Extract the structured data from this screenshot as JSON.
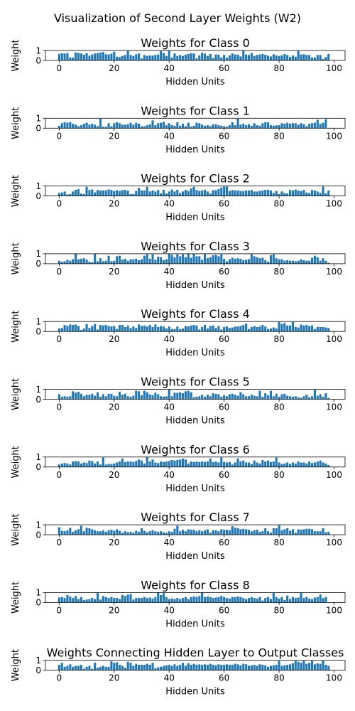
{
  "figure": {
    "title": "Visualization of Second Layer Weights (W2)"
  },
  "style": {
    "bar_color": "#1f77b4",
    "axis_color": "#000000"
  },
  "chart_data": [
    {
      "type": "bar",
      "title": "Weights for Class 0",
      "xlabel": "Hidden Units",
      "ylabel": "Weight",
      "x": "0..99",
      "ylim": [
        0,
        1
      ],
      "xlim": [
        -5,
        104
      ],
      "xticks": [
        0,
        20,
        40,
        60,
        80,
        100
      ],
      "yticks": [
        0,
        1
      ],
      "values": [
        0.65,
        0.72,
        0.7,
        0.75,
        0.3,
        0.28,
        0.8,
        0.75,
        0.7,
        0.58,
        0.73,
        0.48,
        0.6,
        0.7,
        0.75,
        0.8,
        0.85,
        0.62,
        0.6,
        0.68,
        0.88,
        0.38,
        0.35,
        0.45,
        0.55,
        0.95,
        0.55,
        0.45,
        0.62,
        0.7,
        0.2,
        0.55,
        0.45,
        0.5,
        0.48,
        0.55,
        0.6,
        0.95,
        0.75,
        0.45,
        0.98,
        0.3,
        0.7,
        0.45,
        0.55,
        0.45,
        0.58,
        0.65,
        0.72,
        0.7,
        0.2,
        0.5,
        0.78,
        0.68,
        0.45,
        0.65,
        0.25,
        0.6,
        0.58,
        0.3,
        0.55,
        0.28,
        0.5,
        0.7,
        0.6,
        0.58,
        0.4,
        0.98,
        0.6,
        0.55,
        0.75,
        0.45,
        0.55,
        0.6,
        0.65,
        0.58,
        0.48,
        0.4,
        0.62,
        0.5,
        0.45,
        0.5,
        0.65,
        0.55,
        0.35,
        0.5,
        0.38,
        0.95,
        0.6,
        0.62,
        0.55,
        0.55,
        0.3,
        0.3,
        0.55,
        0.55,
        0.15,
        0.35,
        0.65,
        0.0
      ]
    },
    {
      "type": "bar",
      "title": "Weights for Class 1",
      "xlabel": "Hidden Units",
      "ylabel": "Weight",
      "x": "0..99",
      "ylim": [
        0,
        1
      ],
      "xlim": [
        -5,
        104
      ],
      "xticks": [
        0,
        20,
        40,
        60,
        80,
        100
      ],
      "yticks": [
        0,
        1
      ],
      "values": [
        0.25,
        0.5,
        0.6,
        0.55,
        0.62,
        0.45,
        0.35,
        0.2,
        0.3,
        0.45,
        0.55,
        0.35,
        0.45,
        0.35,
        0.2,
        0.95,
        0.15,
        0.15,
        0.5,
        0.2,
        0.5,
        0.6,
        0.5,
        0.35,
        0.35,
        0.4,
        0.55,
        0.35,
        0.55,
        0.45,
        0.2,
        0.2,
        0.3,
        0.38,
        0.78,
        0.3,
        0.5,
        0.55,
        0.65,
        0.3,
        0.5,
        0.3,
        0.25,
        0.6,
        0.25,
        0.45,
        0.2,
        0.55,
        0.15,
        0.25,
        0.55,
        0.5,
        0.35,
        0.25,
        0.3,
        0.22,
        0.4,
        0.4,
        0.3,
        0.25,
        0.2,
        0.15,
        0.3,
        0.6,
        0.3,
        0.95,
        0.35,
        0.45,
        0.3,
        0.4,
        0.25,
        0.5,
        0.3,
        0.25,
        0.5,
        0.6,
        0.6,
        0.3,
        0.25,
        0.3,
        0.3,
        0.5,
        0.45,
        0.55,
        0.45,
        0.5,
        0.5,
        0.35,
        0.5,
        0.4,
        0.2,
        0.45,
        0.5,
        0.55,
        0.85,
        0.45,
        0.55,
        0.9,
        0.0,
        0.0
      ]
    },
    {
      "type": "bar",
      "title": "Weights for Class 2",
      "xlabel": "Hidden Units",
      "ylabel": "Weight",
      "x": "0..99",
      "ylim": [
        0,
        1
      ],
      "xlim": [
        -5,
        104
      ],
      "xticks": [
        0,
        20,
        40,
        60,
        80,
        100
      ],
      "yticks": [
        0,
        1
      ],
      "values": [
        0.3,
        0.35,
        0.45,
        0.15,
        0.2,
        0.45,
        0.62,
        0.68,
        0.25,
        0.2,
        0.92,
        0.6,
        0.65,
        0.35,
        0.6,
        0.55,
        0.55,
        0.55,
        0.65,
        0.6,
        0.5,
        0.58,
        0.5,
        0.6,
        0.6,
        0.55,
        0.2,
        0.2,
        0.5,
        0.8,
        0.55,
        0.55,
        0.92,
        0.45,
        0.55,
        0.45,
        0.6,
        0.25,
        0.62,
        0.25,
        0.45,
        0.65,
        0.45,
        0.62,
        0.3,
        0.45,
        0.62,
        0.5,
        0.75,
        0.92,
        0.6,
        0.5,
        0.55,
        0.62,
        0.45,
        0.25,
        0.58,
        0.58,
        0.68,
        0.85,
        0.95,
        0.95,
        0.5,
        0.6,
        0.55,
        0.55,
        0.5,
        0.5,
        0.55,
        0.55,
        0.6,
        0.45,
        0.45,
        0.5,
        0.55,
        0.62,
        0.62,
        0.55,
        0.3,
        0.5,
        0.2,
        0.45,
        0.3,
        0.25,
        0.6,
        0.55,
        0.65,
        0.55,
        0.5,
        0.6,
        0.35,
        0.3,
        0.6,
        0.55,
        0.45,
        0.3,
        0.95,
        0.25,
        0.55,
        0.0
      ]
    },
    {
      "type": "bar",
      "title": "Weights for Class 3",
      "xlabel": "Hidden Units",
      "ylabel": "Weight",
      "x": "0..99",
      "ylim": [
        0,
        1
      ],
      "xlim": [
        -5,
        104
      ],
      "xticks": [
        0,
        20,
        40,
        60,
        80,
        100
      ],
      "yticks": [
        0,
        1
      ],
      "values": [
        0.3,
        0.2,
        0.25,
        0.4,
        0.3,
        0.45,
        1.0,
        0.45,
        0.5,
        0.55,
        0.4,
        0.2,
        0.15,
        1.0,
        0.25,
        0.55,
        0.25,
        0.3,
        0.8,
        0.25,
        0.3,
        0.75,
        0.8,
        0.4,
        0.5,
        0.3,
        0.45,
        0.45,
        0.5,
        0.35,
        0.45,
        0.8,
        0.95,
        0.5,
        0.95,
        0.4,
        0.7,
        0.65,
        0.35,
        0.45,
        1.0,
        0.9,
        0.65,
        0.95,
        0.75,
        0.95,
        0.65,
        1.0,
        0.6,
        1.0,
        0.75,
        0.75,
        0.4,
        0.95,
        0.55,
        0.65,
        0.85,
        0.9,
        0.75,
        0.95,
        0.5,
        0.25,
        0.45,
        0.6,
        0.5,
        0.55,
        0.5,
        0.35,
        0.4,
        0.45,
        0.95,
        0.75,
        0.65,
        0.55,
        0.6,
        0.35,
        0.2,
        0.85,
        0.95,
        0.55,
        0.45,
        0.45,
        0.3,
        0.35,
        0.3,
        0.3,
        0.25,
        0.3,
        0.45,
        0.35,
        0.3,
        0.3,
        0.6,
        0.8,
        0.65,
        0.3,
        0.55,
        0.3,
        0.1,
        0.0
      ]
    },
    {
      "type": "bar",
      "title": "Weights for Class 4",
      "xlabel": "Hidden Units",
      "ylabel": "Weight",
      "x": "0..99",
      "ylim": [
        0,
        1
      ],
      "xlim": [
        -5,
        104
      ],
      "xticks": [
        0,
        20,
        40,
        60,
        80,
        100
      ],
      "yticks": [
        0,
        1
      ],
      "values": [
        0.3,
        0.35,
        0.65,
        0.55,
        0.7,
        0.65,
        0.7,
        0.55,
        0.15,
        0.3,
        0.75,
        0.35,
        0.55,
        0.75,
        0.2,
        0.65,
        0.6,
        0.65,
        0.55,
        0.5,
        0.55,
        0.25,
        0.65,
        0.65,
        0.45,
        0.6,
        0.35,
        0.5,
        0.35,
        0.7,
        0.55,
        0.6,
        0.5,
        0.65,
        0.45,
        0.7,
        0.45,
        0.55,
        0.5,
        0.3,
        0.5,
        0.25,
        0.25,
        0.5,
        0.25,
        0.3,
        0.55,
        0.5,
        0.6,
        0.65,
        0.6,
        0.2,
        0.45,
        0.65,
        0.3,
        0.55,
        0.6,
        0.35,
        0.55,
        0.2,
        0.45,
        0.5,
        0.35,
        0.4,
        0.5,
        0.5,
        0.55,
        0.65,
        0.8,
        0.25,
        0.45,
        0.55,
        0.45,
        0.5,
        0.65,
        0.5,
        0.25,
        0.3,
        0.4,
        0.3,
        0.95,
        0.75,
        0.85,
        0.6,
        0.6,
        0.95,
        0.45,
        0.4,
        0.7,
        0.6,
        0.65,
        0.55,
        0.6,
        0.25,
        0.45,
        0.45,
        0.45,
        0.4,
        0.35,
        0.0
      ]
    },
    {
      "type": "bar",
      "title": "Weights for Class 5",
      "xlabel": "Hidden Units",
      "ylabel": "Weight",
      "x": "0..99",
      "ylim": [
        0,
        1
      ],
      "xlim": [
        -5,
        104
      ],
      "xticks": [
        0,
        20,
        40,
        60,
        80,
        100
      ],
      "yticks": [
        0,
        1
      ],
      "values": [
        0.5,
        0.25,
        0.3,
        0.25,
        0.3,
        0.8,
        0.65,
        0.75,
        0.55,
        0.3,
        0.45,
        0.45,
        0.55,
        0.35,
        0.7,
        0.25,
        0.5,
        0.3,
        0.55,
        0.55,
        0.35,
        0.3,
        0.75,
        0.45,
        0.55,
        0.3,
        0.25,
        0.35,
        0.85,
        0.8,
        0.4,
        0.85,
        0.7,
        0.5,
        0.4,
        0.65,
        0.5,
        0.3,
        0.25,
        0.3,
        1.0,
        0.3,
        0.65,
        0.65,
        0.7,
        0.6,
        0.8,
        0.85,
        0.7,
        0.2,
        0.25,
        0.3,
        0.45,
        0.25,
        0.45,
        0.3,
        0.6,
        0.55,
        0.5,
        0.25,
        0.4,
        0.3,
        0.5,
        0.55,
        0.45,
        0.35,
        0.7,
        0.5,
        0.3,
        0.3,
        0.45,
        0.35,
        0.3,
        0.85,
        0.25,
        0.6,
        0.4,
        0.85,
        0.3,
        0.55,
        0.25,
        0.5,
        0.55,
        0.35,
        0.3,
        0.25,
        0.3,
        0.2,
        0.15,
        0.3,
        0.45,
        0.2,
        0.3,
        0.95,
        0.35,
        0.5,
        0.25,
        0.6,
        0.15,
        0.0
      ]
    },
    {
      "type": "bar",
      "title": "Weights for Class 6",
      "xlabel": "Hidden Units",
      "ylabel": "Weight",
      "x": "0..99",
      "ylim": [
        0,
        1
      ],
      "xlim": [
        -5,
        104
      ],
      "xticks": [
        0,
        20,
        40,
        60,
        80,
        100
      ],
      "yticks": [
        0,
        1
      ],
      "values": [
        0.25,
        0.35,
        0.4,
        0.35,
        0.25,
        0.55,
        0.6,
        0.55,
        0.35,
        0.45,
        0.4,
        0.65,
        0.6,
        0.35,
        0.55,
        0.25,
        0.95,
        0.25,
        0.3,
        0.3,
        0.35,
        0.45,
        0.55,
        0.85,
        0.5,
        0.55,
        0.55,
        0.5,
        0.6,
        0.75,
        0.65,
        0.35,
        1.0,
        0.55,
        0.75,
        0.45,
        0.4,
        0.55,
        0.5,
        0.55,
        0.6,
        0.7,
        0.65,
        0.7,
        0.75,
        0.85,
        0.75,
        0.35,
        0.55,
        0.5,
        0.55,
        0.5,
        0.55,
        0.5,
        0.55,
        0.85,
        0.5,
        0.55,
        0.45,
        0.95,
        0.5,
        0.45,
        0.5,
        0.25,
        0.45,
        0.85,
        0.55,
        0.65,
        0.45,
        0.45,
        0.3,
        0.65,
        0.45,
        0.35,
        0.7,
        0.55,
        0.65,
        0.5,
        0.55,
        0.95,
        0.45,
        0.3,
        0.35,
        0.45,
        0.3,
        0.45,
        0.35,
        0.55,
        0.45,
        0.45,
        0.35,
        0.55,
        0.4,
        0.45,
        0.55,
        0.65,
        0.45,
        0.35,
        0.2,
        0.0
      ]
    },
    {
      "type": "bar",
      "title": "Weights for Class 7",
      "xlabel": "Hidden Units",
      "ylabel": "Weight",
      "x": "0..99",
      "ylim": [
        0,
        1
      ],
      "xlim": [
        -5,
        104
      ],
      "xticks": [
        0,
        20,
        40,
        60,
        80,
        100
      ],
      "yticks": [
        0,
        1
      ],
      "values": [
        0.75,
        0.4,
        0.35,
        0.45,
        0.7,
        0.3,
        0.45,
        0.55,
        0.9,
        0.35,
        0.7,
        0.65,
        0.55,
        0.45,
        0.35,
        0.35,
        0.45,
        0.3,
        0.45,
        0.5,
        0.4,
        0.55,
        0.4,
        0.2,
        0.35,
        0.25,
        0.3,
        0.2,
        0.4,
        0.3,
        0.65,
        0.4,
        0.25,
        0.35,
        0.45,
        0.35,
        0.3,
        0.35,
        0.25,
        0.2,
        0.35,
        0.3,
        0.6,
        0.9,
        0.35,
        0.5,
        0.35,
        0.55,
        0.5,
        0.5,
        0.35,
        0.45,
        0.35,
        0.45,
        0.55,
        0.2,
        0.45,
        0.45,
        0.35,
        0.55,
        0.5,
        0.5,
        0.45,
        0.85,
        0.7,
        0.65,
        0.55,
        0.6,
        0.55,
        0.5,
        0.35,
        0.45,
        0.5,
        0.3,
        0.35,
        0.65,
        0.35,
        0.2,
        0.65,
        0.65,
        0.95,
        0.45,
        0.55,
        0.65,
        0.4,
        0.55,
        0.2,
        0.55,
        0.5,
        0.55,
        0.6,
        0.6,
        0.55,
        0.35,
        0.35,
        0.35,
        0.65,
        0.25,
        0.3,
        0.0
      ]
    },
    {
      "type": "bar",
      "title": "Weights for Class 8",
      "xlabel": "Hidden Units",
      "ylabel": "Weight",
      "x": "0..99",
      "ylim": [
        0,
        1
      ],
      "xlim": [
        -5,
        104
      ],
      "xticks": [
        0,
        20,
        40,
        60,
        80,
        100
      ],
      "yticks": [
        0,
        1
      ],
      "values": [
        0.5,
        0.55,
        0.45,
        0.75,
        0.6,
        0.45,
        0.65,
        0.35,
        0.55,
        0.25,
        0.3,
        0.35,
        0.45,
        0.35,
        0.95,
        0.3,
        0.65,
        0.55,
        0.45,
        0.55,
        0.45,
        0.45,
        0.35,
        0.75,
        0.65,
        0.8,
        0.85,
        0.3,
        0.45,
        0.45,
        0.45,
        0.55,
        0.45,
        0.5,
        0.4,
        0.55,
        1.0,
        0.75,
        0.95,
        0.55,
        0.35,
        0.4,
        0.35,
        0.45,
        0.35,
        0.45,
        0.55,
        0.35,
        0.55,
        0.6,
        0.55,
        0.65,
        1.0,
        0.55,
        0.6,
        0.55,
        0.45,
        0.5,
        0.55,
        0.65,
        0.55,
        0.45,
        0.4,
        0.55,
        0.55,
        0.6,
        0.55,
        0.45,
        0.35,
        0.45,
        0.55,
        0.45,
        0.4,
        0.55,
        0.2,
        0.45,
        0.55,
        0.35,
        0.95,
        0.55,
        0.4,
        0.55,
        0.25,
        0.7,
        0.35,
        0.55,
        0.45,
        0.5,
        0.95,
        0.45,
        0.55,
        0.4,
        0.35,
        0.5,
        0.55,
        0.8,
        0.45,
        0.55,
        0.0,
        0.0
      ]
    },
    {
      "type": "bar",
      "title": "Weights Connecting Hidden Layer to Output Classes",
      "xlabel": "Hidden Units",
      "ylabel": "Weight",
      "x": "0..99",
      "ylim": [
        0,
        1
      ],
      "xlim": [
        -5,
        104
      ],
      "xticks": [
        0,
        20,
        40,
        60,
        80,
        100
      ],
      "yticks": [
        0,
        1
      ],
      "values": [
        0.55,
        0.75,
        0.35,
        0.45,
        0.6,
        0.35,
        0.45,
        0.45,
        0.55,
        0.15,
        0.35,
        0.45,
        0.15,
        0.75,
        0.25,
        0.35,
        0.45,
        0.35,
        0.35,
        0.9,
        0.75,
        0.8,
        0.55,
        0.45,
        0.25,
        0.85,
        0.75,
        0.45,
        0.65,
        0.55,
        0.55,
        0.55,
        0.65,
        0.55,
        0.75,
        0.2,
        0.3,
        0.35,
        0.45,
        0.5,
        0.55,
        0.45,
        0.6,
        0.45,
        0.55,
        0.75,
        0.45,
        0.7,
        0.55,
        0.65,
        0.55,
        0.6,
        0.55,
        0.6,
        0.55,
        0.65,
        0.55,
        0.5,
        0.6,
        0.55,
        0.55,
        0.6,
        0.55,
        0.55,
        0.65,
        0.6,
        0.5,
        0.65,
        0.6,
        0.45,
        0.5,
        0.55,
        0.45,
        0.6,
        0.55,
        0.5,
        0.35,
        0.45,
        0.5,
        0.55,
        0.95,
        0.45,
        0.5,
        0.55,
        0.6,
        0.7,
        0.95,
        0.85,
        0.75,
        0.95,
        0.65,
        0.75,
        0.95,
        0.6,
        0.7,
        0.65,
        0.95,
        0.55,
        0.45,
        0.0
      ]
    }
  ]
}
